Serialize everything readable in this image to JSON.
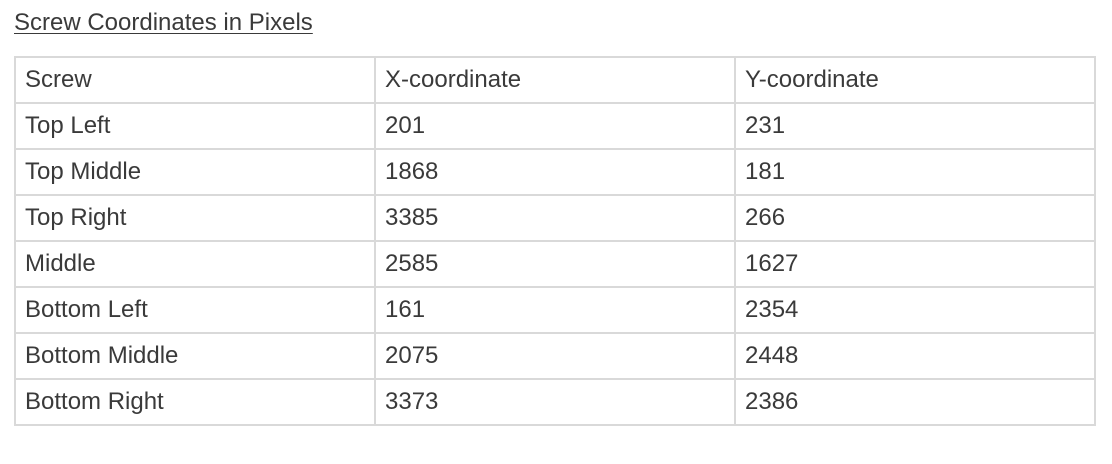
{
  "caption": "Screw Coordinates in Pixels",
  "table": {
    "headers": [
      "Screw",
      "X-coordinate",
      "Y-coordinate"
    ],
    "rows": [
      [
        "Top Left",
        "201",
        "231"
      ],
      [
        "Top Middle",
        "1868",
        "181"
      ],
      [
        "Top Right",
        "3385",
        "266"
      ],
      [
        "Middle",
        "2585",
        "1627"
      ],
      [
        "Bottom Left",
        "161",
        "2354"
      ],
      [
        "Bottom Middle",
        "2075",
        "2448"
      ],
      [
        "Bottom Right",
        "3373",
        "2386"
      ]
    ]
  }
}
